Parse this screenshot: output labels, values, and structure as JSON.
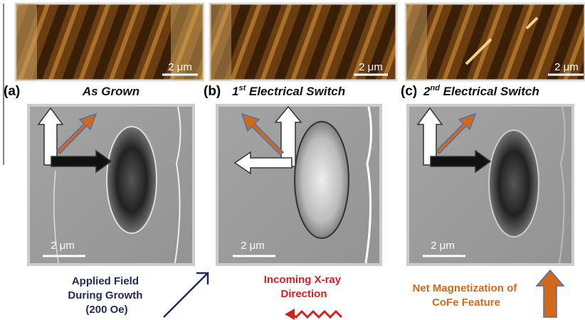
{
  "panels": [
    {
      "label": "(a)",
      "title": {
        "text": "As Grown"
      },
      "afm_scale": "2 μm",
      "xmcd_scale": "2 μm"
    },
    {
      "label": "(b)",
      "title": {
        "ordinal": "1",
        "suffix": "st",
        "text": "Electrical Switch"
      },
      "afm_scale": "2 μm",
      "xmcd_scale": "2 μm"
    },
    {
      "label": "(c)",
      "title": {
        "ordinal": "2",
        "suffix": "nd",
        "text": "Electrical Switch"
      },
      "afm_scale": "2 μm",
      "xmcd_scale": "2 μm"
    }
  ],
  "annotations": {
    "applied_field": [
      "Applied Field",
      "During Growth",
      "(200 Oe)"
    ],
    "xray": [
      "Incoming X-ray",
      "Direction"
    ],
    "magnetization": [
      "Net Magnetization of",
      "CoFe Feature"
    ]
  }
}
